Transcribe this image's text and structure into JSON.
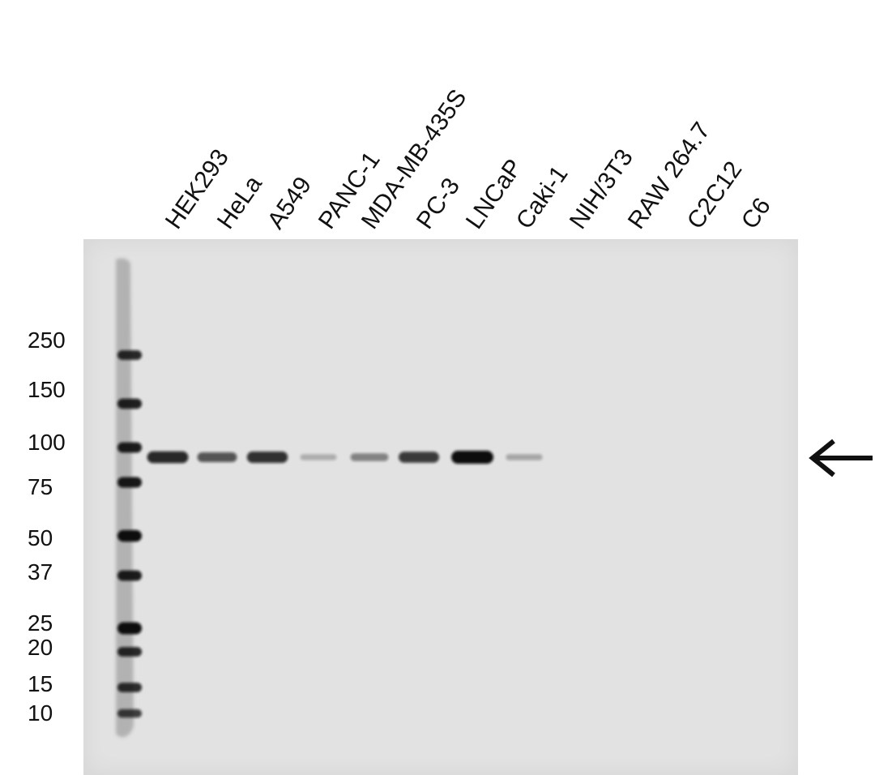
{
  "lanes": [
    {
      "label": "HEK293",
      "band_intensity": 0.85
    },
    {
      "label": "HeLa",
      "band_intensity": 0.6
    },
    {
      "label": "A549",
      "band_intensity": 0.8
    },
    {
      "label": "PANC-1",
      "band_intensity": 0.12
    },
    {
      "label": "MDA-MB-435S",
      "band_intensity": 0.35
    },
    {
      "label": "PC-3",
      "band_intensity": 0.75
    },
    {
      "label": "LNCaP",
      "band_intensity": 1.0
    },
    {
      "label": "Caki-1",
      "band_intensity": 0.15
    },
    {
      "label": "NIH/3T3",
      "band_intensity": 0.0
    },
    {
      "label": "RAW 264.7",
      "band_intensity": 0.0
    },
    {
      "label": "C2C12",
      "band_intensity": 0.0
    },
    {
      "label": "C6",
      "band_intensity": 0.0
    }
  ],
  "markers": [
    {
      "label": "250"
    },
    {
      "label": "150"
    },
    {
      "label": "100"
    },
    {
      "label": "75"
    },
    {
      "label": "50"
    },
    {
      "label": "37"
    },
    {
      "label": "25"
    },
    {
      "label": "20"
    },
    {
      "label": "15"
    },
    {
      "label": "10"
    }
  ],
  "target_band_marker": "arrow",
  "colors": {
    "membrane": "#e2e2e2",
    "band": "#0a0a0a",
    "text": "#111111"
  }
}
